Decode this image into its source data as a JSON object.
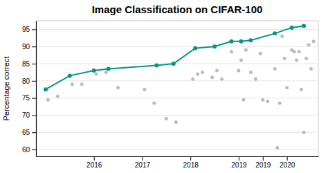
{
  "chart_data": {
    "type": "scatter",
    "title": "Image Classification on CIFAR-100",
    "ylabel": "Percentage correct",
    "xlim": [
      2014.8,
      2020.65
    ],
    "xticks": [
      2016,
      2017,
      2018,
      2019.0,
      {
        "value": 2019.5,
        "label": "2019"
      },
      2020
    ],
    "ylim": [
      58,
      97.5
    ],
    "yticks": [
      60,
      65,
      70,
      75,
      80,
      85,
      90,
      95
    ],
    "grid": true,
    "series": [
      {
        "type": "scatter",
        "color": "#bbbbbb",
        "marker": "circle",
        "x": [
          2015.05,
          2015.25,
          2015.55,
          2015.75,
          2016.05,
          2016.25,
          2016.5,
          2017.05,
          2017.25,
          2017.5,
          2017.7,
          2018.05,
          2018.15,
          2018.25,
          2018.45,
          2018.55,
          2018.65,
          2018.85,
          2019.0,
          2019.05,
          2019.1,
          2019.15,
          2019.25,
          2019.35,
          2019.45,
          2019.5,
          2019.6,
          2019.75,
          2019.8,
          2019.85,
          2019.9,
          2019.95,
          2020.0,
          2020.1,
          2020.15,
          2020.2,
          2020.25,
          2020.3,
          2020.35,
          2020.4,
          2020.45,
          2020.5,
          2020.55
        ],
        "values": [
          74.5,
          75.5,
          79.0,
          79.0,
          82.0,
          82.5,
          78.0,
          77.5,
          73.5,
          69.0,
          68.0,
          80.5,
          82.0,
          82.5,
          81.0,
          83.0,
          80.5,
          88.5,
          83.0,
          86.0,
          74.5,
          89.0,
          82.5,
          80.5,
          88.0,
          74.5,
          74.0,
          83.5,
          60.5,
          73.5,
          93.0,
          86.5,
          78.0,
          89.0,
          88.5,
          86.0,
          88.5,
          77.5,
          65.0,
          86.5,
          90.5,
          83.5,
          91.5
        ]
      },
      {
        "type": "line",
        "color": "#009688",
        "marker": "circle",
        "line_style": "solid",
        "x": [
          2015.0,
          2015.5,
          2016.0,
          2016.3,
          2017.3,
          2017.65,
          2018.1,
          2018.5,
          2018.85,
          2019.05,
          2019.25,
          2019.75,
          2020.1,
          2020.35
        ],
        "values": [
          77.5,
          81.5,
          83.0,
          83.5,
          84.5,
          85.0,
          89.5,
          90.0,
          91.5,
          91.5,
          91.8,
          93.8,
          95.5,
          96.0
        ]
      }
    ]
  }
}
